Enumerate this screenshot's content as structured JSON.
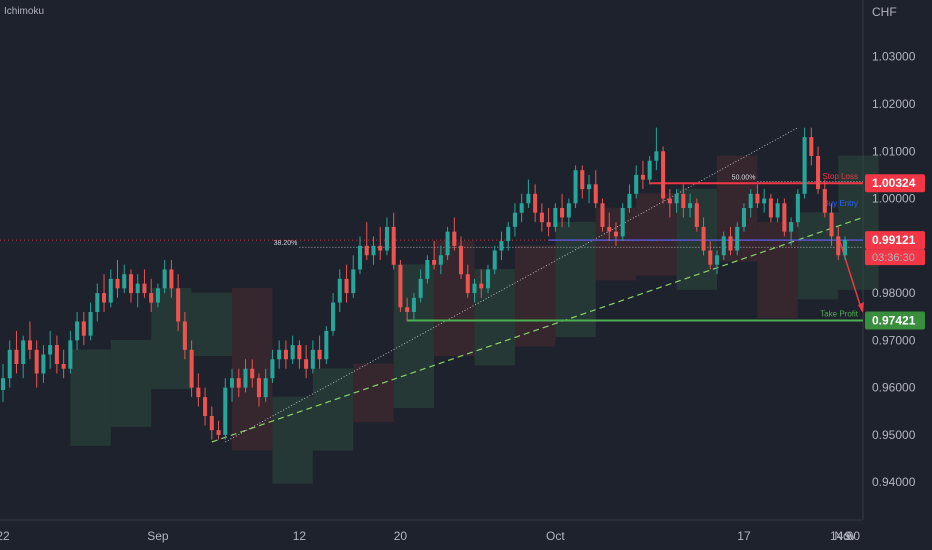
{
  "header": {
    "indicator_label": "Ichimoku"
  },
  "colors": {
    "background": "#1e222d",
    "up_candle": "#26a69a",
    "down_candle": "#ef5350",
    "stop_loss": "#f23645",
    "entry": "#2962ff",
    "take_profit": "#4caf50",
    "trendline": "#89d16a",
    "axis_text": "#b2b5be",
    "price_tag": "#f23645",
    "cloud_green": "#2e4a3d",
    "cloud_red": "#4a2a30"
  },
  "chart_data": {
    "type": "candlestick",
    "currency_label": "CHF",
    "y_axis": {
      "range": [
        0.932,
        1.042
      ],
      "ticks": [
        "1.03000",
        "1.02000",
        "1.01000",
        "1.00000",
        "0.98000",
        "0.97000",
        "0.96000",
        "0.95000",
        "0.94000"
      ]
    },
    "x_axis": {
      "ticks": [
        "22",
        "Sep",
        "12",
        "20",
        "Oct",
        "17",
        "14:00",
        "Nov",
        "9"
      ]
    },
    "levels": {
      "stop_loss": {
        "label": "Stop Loss",
        "value": "1.00324"
      },
      "entry": {
        "label": "Buy Entry",
        "value": "0.99121"
      },
      "take_profit": {
        "label": "Take Profit",
        "value": "0.97421"
      },
      "current": {
        "value": "0.99121",
        "countdown": "03:36:30"
      }
    },
    "fibonacci": [
      {
        "label": "50.00%",
        "value": 1.0036
      },
      {
        "label": "38.20%",
        "value": 0.9897
      }
    ],
    "series": [
      {
        "name": "",
        "type": "candles",
        "note_format": "[open, high, low, close]"
      }
    ],
    "candles": [
      [
        0.9595,
        0.965,
        0.957,
        0.962
      ],
      [
        0.962,
        0.97,
        0.96,
        0.968
      ],
      [
        0.968,
        0.972,
        0.963,
        0.965
      ],
      [
        0.965,
        0.971,
        0.962,
        0.97
      ],
      [
        0.97,
        0.974,
        0.966,
        0.968
      ],
      [
        0.968,
        0.97,
        0.96,
        0.963
      ],
      [
        0.963,
        0.969,
        0.961,
        0.967
      ],
      [
        0.967,
        0.972,
        0.964,
        0.969
      ],
      [
        0.969,
        0.971,
        0.963,
        0.965
      ],
      [
        0.965,
        0.968,
        0.962,
        0.964
      ],
      [
        0.964,
        0.972,
        0.963,
        0.97
      ],
      [
        0.97,
        0.976,
        0.968,
        0.974
      ],
      [
        0.974,
        0.976,
        0.969,
        0.971
      ],
      [
        0.971,
        0.978,
        0.97,
        0.976
      ],
      [
        0.976,
        0.982,
        0.974,
        0.98
      ],
      [
        0.98,
        0.984,
        0.976,
        0.978
      ],
      [
        0.978,
        0.985,
        0.977,
        0.983
      ],
      [
        0.983,
        0.987,
        0.979,
        0.981
      ],
      [
        0.981,
        0.986,
        0.98,
        0.984
      ],
      [
        0.984,
        0.985,
        0.978,
        0.98
      ],
      [
        0.98,
        0.984,
        0.977,
        0.982
      ],
      [
        0.982,
        0.985,
        0.979,
        0.98
      ],
      [
        0.98,
        0.983,
        0.976,
        0.978
      ],
      [
        0.978,
        0.982,
        0.977,
        0.981
      ],
      [
        0.981,
        0.987,
        0.98,
        0.985
      ],
      [
        0.985,
        0.987,
        0.979,
        0.981
      ],
      [
        0.981,
        0.984,
        0.972,
        0.974
      ],
      [
        0.974,
        0.976,
        0.966,
        0.968
      ],
      [
        0.968,
        0.97,
        0.958,
        0.96
      ],
      [
        0.96,
        0.963,
        0.956,
        0.958
      ],
      [
        0.958,
        0.96,
        0.952,
        0.954
      ],
      [
        0.954,
        0.956,
        0.949,
        0.951
      ],
      [
        0.951,
        0.953,
        0.949,
        0.95
      ],
      [
        0.95,
        0.962,
        0.949,
        0.96
      ],
      [
        0.96,
        0.964,
        0.957,
        0.962
      ],
      [
        0.962,
        0.964,
        0.958,
        0.96
      ],
      [
        0.96,
        0.966,
        0.959,
        0.964
      ],
      [
        0.964,
        0.966,
        0.96,
        0.962
      ],
      [
        0.962,
        0.963,
        0.956,
        0.958
      ],
      [
        0.958,
        0.964,
        0.957,
        0.962
      ],
      [
        0.962,
        0.968,
        0.961,
        0.966
      ],
      [
        0.966,
        0.97,
        0.964,
        0.968
      ],
      [
        0.968,
        0.97,
        0.964,
        0.966
      ],
      [
        0.966,
        0.971,
        0.965,
        0.969
      ],
      [
        0.969,
        0.97,
        0.964,
        0.966
      ],
      [
        0.966,
        0.969,
        0.962,
        0.964
      ],
      [
        0.964,
        0.97,
        0.963,
        0.968
      ],
      [
        0.968,
        0.971,
        0.964,
        0.966
      ],
      [
        0.966,
        0.973,
        0.965,
        0.972
      ],
      [
        0.972,
        0.98,
        0.971,
        0.978
      ],
      [
        0.978,
        0.985,
        0.976,
        0.983
      ],
      [
        0.983,
        0.986,
        0.978,
        0.98
      ],
      [
        0.98,
        0.988,
        0.979,
        0.985
      ],
      [
        0.985,
        0.992,
        0.984,
        0.99
      ],
      [
        0.99,
        0.995,
        0.987,
        0.988
      ],
      [
        0.988,
        0.992,
        0.986,
        0.99
      ],
      [
        0.99,
        0.994,
        0.987,
        0.989
      ],
      [
        0.989,
        0.996,
        0.988,
        0.994
      ],
      [
        0.994,
        0.997,
        0.985,
        0.986
      ],
      [
        0.986,
        0.987,
        0.976,
        0.977
      ],
      [
        0.977,
        0.979,
        0.974,
        0.976
      ],
      [
        0.976,
        0.98,
        0.974,
        0.979
      ],
      [
        0.979,
        0.985,
        0.978,
        0.983
      ],
      [
        0.983,
        0.988,
        0.982,
        0.987
      ],
      [
        0.987,
        0.991,
        0.985,
        0.986
      ],
      [
        0.986,
        0.99,
        0.984,
        0.988
      ],
      [
        0.988,
        0.994,
        0.987,
        0.993
      ],
      [
        0.993,
        0.996,
        0.989,
        0.99
      ],
      [
        0.99,
        0.992,
        0.983,
        0.984
      ],
      [
        0.984,
        0.986,
        0.979,
        0.98
      ],
      [
        0.98,
        0.983,
        0.978,
        0.982
      ],
      [
        0.982,
        0.985,
        0.979,
        0.981
      ],
      [
        0.981,
        0.986,
        0.98,
        0.985
      ],
      [
        0.985,
        0.99,
        0.984,
        0.989
      ],
      [
        0.989,
        0.993,
        0.987,
        0.991
      ],
      [
        0.991,
        0.995,
        0.989,
        0.994
      ],
      [
        0.994,
        0.999,
        0.992,
        0.997
      ],
      [
        0.997,
        1.001,
        0.995,
        0.999
      ],
      [
        0.999,
        1.004,
        0.998,
        1.001
      ],
      [
        1.001,
        1.003,
        0.995,
        0.997
      ],
      [
        0.997,
        0.999,
        0.993,
        0.995
      ],
      [
        0.995,
        0.998,
        0.992,
        0.994
      ],
      [
        0.994,
        0.999,
        0.993,
        0.998
      ],
      [
        0.998,
        1.001,
        0.994,
        0.996
      ],
      [
        0.996,
        1.0,
        0.994,
        0.999
      ],
      [
        0.999,
        1.007,
        0.998,
        1.006
      ],
      [
        1.006,
        1.007,
        1.0,
        1.002
      ],
      [
        1.002,
        1.005,
        0.999,
        1.003
      ],
      [
        1.003,
        1.006,
        0.998,
        0.999
      ],
      [
        0.999,
        1.0,
        0.993,
        0.994
      ],
      [
        0.994,
        0.997,
        0.991,
        0.993
      ],
      [
        0.993,
        0.995,
        0.99,
        0.992
      ],
      [
        0.992,
        0.999,
        0.991,
        0.998
      ],
      [
        0.998,
        1.003,
        0.997,
        1.001
      ],
      [
        1.001,
        1.007,
        1.0,
        1.005
      ],
      [
        1.005,
        1.008,
        1.002,
        1.004
      ],
      [
        1.004,
        1.009,
        1.003,
        1.008
      ],
      [
        1.008,
        1.015,
        1.006,
        1.01
      ],
      [
        1.01,
        1.011,
        0.999,
        1.0
      ],
      [
        1.0,
        1.002,
        0.996,
        0.999
      ],
      [
        0.999,
        1.002,
        0.997,
        1.001
      ],
      [
        1.001,
        1.003,
        0.996,
        0.998
      ],
      [
        0.998,
        1.001,
        0.996,
        0.999
      ],
      [
        0.999,
        1.0,
        0.993,
        0.994
      ],
      [
        0.994,
        0.996,
        0.988,
        0.989
      ],
      [
        0.989,
        0.991,
        0.985,
        0.986
      ],
      [
        0.986,
        0.989,
        0.984,
        0.988
      ],
      [
        0.988,
        0.993,
        0.987,
        0.992
      ],
      [
        0.992,
        0.994,
        0.988,
        0.989
      ],
      [
        0.989,
        0.995,
        0.988,
        0.994
      ],
      [
        0.994,
        0.999,
        0.993,
        0.998
      ],
      [
        0.998,
        1.002,
        0.996,
        1.001
      ],
      [
        1.001,
        1.003,
        0.998,
        0.999
      ],
      [
        0.999,
        1.002,
        0.997,
        1.0
      ],
      [
        1.0,
        1.001,
        0.995,
        0.996
      ],
      [
        0.996,
        1.0,
        0.995,
        0.999
      ],
      [
        0.999,
        1.0,
        0.992,
        0.993
      ],
      [
        0.993,
        0.996,
        0.99,
        0.995
      ],
      [
        0.995,
        1.002,
        0.994,
        1.001
      ],
      [
        1.001,
        1.015,
        1.0,
        1.013
      ],
      [
        1.013,
        1.015,
        1.007,
        1.009
      ],
      [
        1.009,
        1.011,
        1.001,
        1.002
      ],
      [
        1.002,
        1.004,
        0.996,
        0.997
      ],
      [
        0.997,
        0.999,
        0.99,
        0.992
      ],
      [
        0.992,
        0.994,
        0.987,
        0.988
      ],
      [
        0.988,
        0.992,
        0.987,
        0.9912
      ]
    ]
  }
}
